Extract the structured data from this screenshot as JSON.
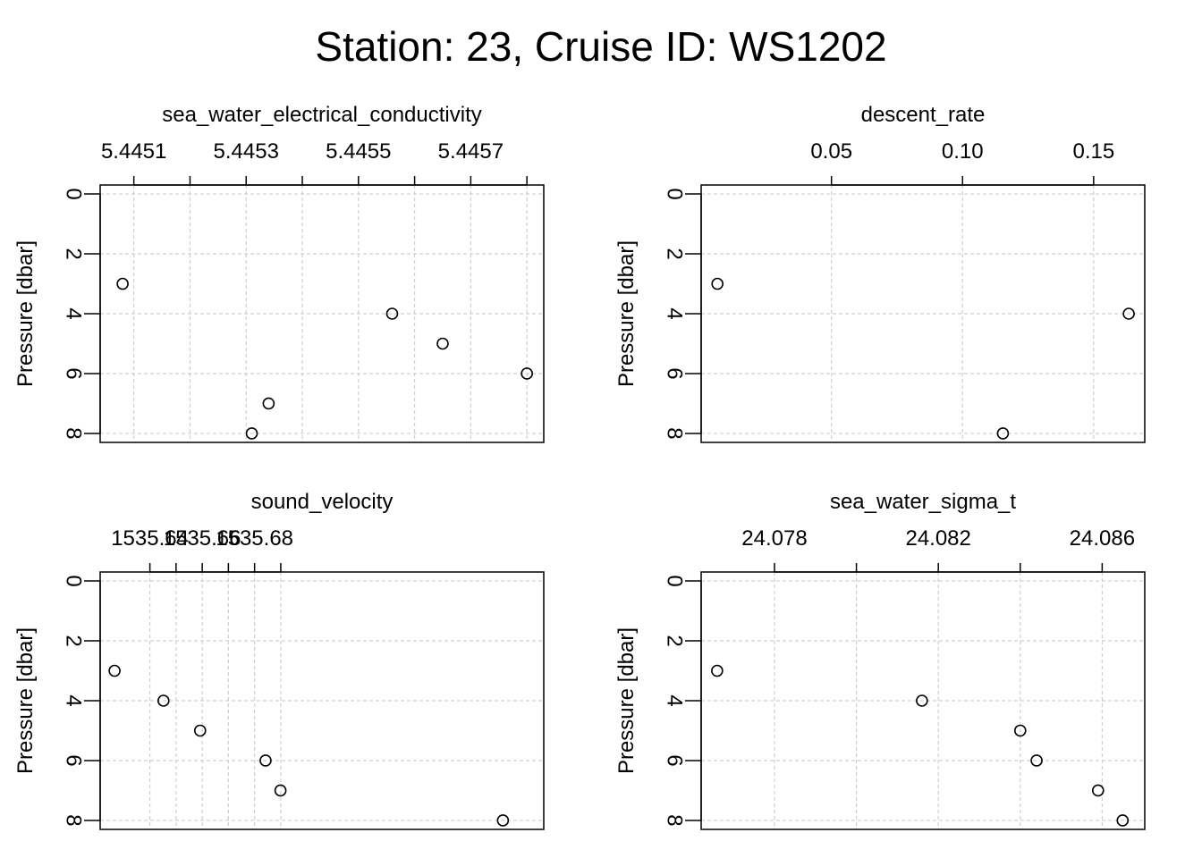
{
  "title": "Station: 23, Cruise ID: WS1202",
  "chart_data": [
    {
      "type": "scatter",
      "title": "sea_water_electrical_conductivity",
      "ylabel": "Pressure [dbar]",
      "xlim": [
        5.44504,
        5.44583
      ],
      "ylim": [
        8.3,
        -0.3
      ],
      "y_inverted": true,
      "grid": true,
      "x_ticks": [
        5.4451,
        5.4452,
        5.4453,
        5.4454,
        5.4455,
        5.4456,
        5.4457,
        5.4458
      ],
      "x_tick_labels": [
        {
          "value": 5.4451,
          "label": "5.4451"
        },
        {
          "value": 5.4453,
          "label": "5.4453"
        },
        {
          "value": 5.4455,
          "label": "5.4455"
        },
        {
          "value": 5.4457,
          "label": "5.4457"
        }
      ],
      "y_ticks": [
        0,
        2,
        4,
        6,
        8
      ],
      "y_tick_labels": [
        "0",
        "2",
        "4",
        "6",
        "8"
      ],
      "points": [
        {
          "x": 5.44508,
          "y": 3
        },
        {
          "x": 5.44556,
          "y": 4
        },
        {
          "x": 5.44565,
          "y": 5
        },
        {
          "x": 5.4458,
          "y": 6
        },
        {
          "x": 5.44534,
          "y": 7
        },
        {
          "x": 5.44531,
          "y": 8
        }
      ]
    },
    {
      "type": "scatter",
      "title": "descent_rate",
      "ylabel": "Pressure [dbar]",
      "xlim": [
        0.0003,
        0.1695
      ],
      "ylim": [
        8.3,
        -0.3
      ],
      "y_inverted": true,
      "grid": true,
      "x_ticks": [
        0.05,
        0.1,
        0.15
      ],
      "x_tick_labels": [
        {
          "value": 0.05,
          "label": "0.05"
        },
        {
          "value": 0.1,
          "label": "0.10"
        },
        {
          "value": 0.15,
          "label": "0.15"
        }
      ],
      "y_ticks": [
        0,
        2,
        4,
        6,
        8
      ],
      "y_tick_labels": [
        "0",
        "2",
        "4",
        "6",
        "8"
      ],
      "points": [
        {
          "x": 0.0065,
          "y": 3
        },
        {
          "x": 0.1634,
          "y": 4
        },
        {
          "x": 0.1154,
          "y": 8
        }
      ]
    },
    {
      "type": "scatter",
      "title": "sound_velocity",
      "ylabel": "Pressure [dbar]",
      "xlim": [
        1535.621,
        1535.7905
      ],
      "ylim": [
        8.3,
        -0.3
      ],
      "y_inverted": true,
      "grid": true,
      "x_ticks": [
        1535.64,
        1535.65,
        1535.66,
        1535.67,
        1535.68,
        1535.69
      ],
      "x_tick_labels": [
        {
          "value": 1535.64,
          "label": "1535.64"
        },
        {
          "value": 1535.66,
          "label": "1535.66"
        },
        {
          "value": 1535.68,
          "label": "1535.68"
        }
      ],
      "y_ticks": [
        0,
        2,
        4,
        6,
        8
      ],
      "y_tick_labels": [
        "0",
        "2",
        "4",
        "6",
        "8"
      ],
      "points": [
        {
          "x": 1535.6265,
          "y": 3
        },
        {
          "x": 1535.6452,
          "y": 4
        },
        {
          "x": 1535.6592,
          "y": 5
        },
        {
          "x": 1535.6842,
          "y": 6
        },
        {
          "x": 1535.6899,
          "y": 7
        },
        {
          "x": 1535.7749,
          "y": 8
        }
      ]
    },
    {
      "type": "scatter",
      "title": "sea_water_sigma_t",
      "ylabel": "Pressure [dbar]",
      "xlim": [
        24.07621,
        24.08704
      ],
      "ylim": [
        8.3,
        -0.3
      ],
      "y_inverted": true,
      "grid": true,
      "x_ticks": [
        24.078,
        24.08,
        24.082,
        24.084,
        24.086
      ],
      "x_tick_labels": [
        {
          "value": 24.078,
          "label": "24.078"
        },
        {
          "value": 24.082,
          "label": "24.082"
        },
        {
          "value": 24.086,
          "label": "24.086"
        }
      ],
      "y_ticks": [
        0,
        2,
        4,
        6,
        8
      ],
      "y_tick_labels": [
        "0",
        "2",
        "4",
        "6",
        "8"
      ],
      "points": [
        {
          "x": 24.0766,
          "y": 3
        },
        {
          "x": 24.0816,
          "y": 4
        },
        {
          "x": 24.084,
          "y": 5
        },
        {
          "x": 24.0844,
          "y": 6
        },
        {
          "x": 24.0859,
          "y": 7
        },
        {
          "x": 24.0865,
          "y": 8
        }
      ]
    }
  ]
}
